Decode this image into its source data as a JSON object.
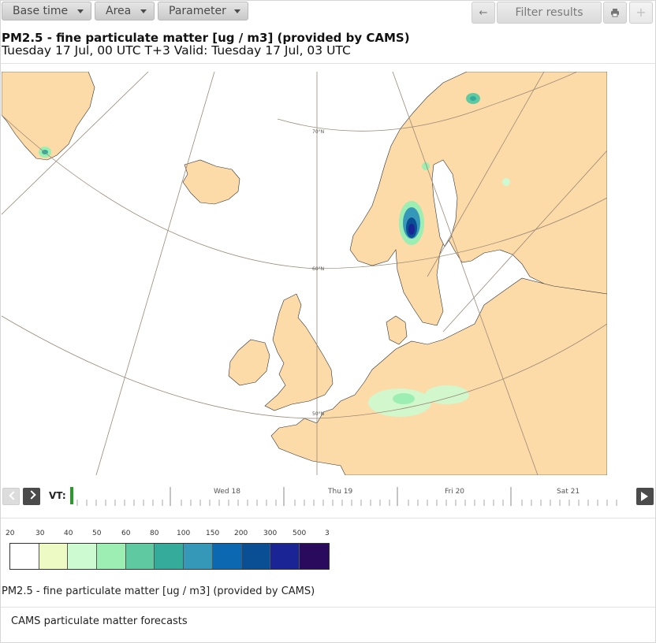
{
  "toolbar": {
    "base_time": "Base time",
    "area": "Area",
    "parameter": "Parameter",
    "filter_results": "Filter results"
  },
  "title": {
    "line1": "PM2.5 - fine particulate matter [ug / m3] (provided by CAMS)",
    "line2": "Tuesday 17 Jul, 00 UTC T+3 Valid: Tuesday 17 Jul, 03 UTC"
  },
  "map": {
    "lat_labels": [
      "70°N",
      "60°N",
      "50°N"
    ],
    "colors": {
      "land": "#fcdba8",
      "sea": "#ffffff",
      "border": "#222222",
      "graticule": "#9a8a78"
    }
  },
  "timeline": {
    "vt_label": "VT:",
    "days": [
      "Wed 18",
      "Thu 19",
      "Fri 20",
      "Sat 21"
    ],
    "current_marker_color": "#2a9a2a"
  },
  "legend": {
    "labels": [
      "20",
      "30",
      "40",
      "50",
      "60",
      "80",
      "100",
      "150",
      "200",
      "300",
      "500",
      "3"
    ],
    "colors": [
      "#ffffff",
      "#eefac4",
      "#cdfad0",
      "#9ceeb2",
      "#5fcaa2",
      "#35ab9c",
      "#3598b8",
      "#0c68b0",
      "#0a4f94",
      "#1a2494",
      "#2a0a5c"
    ],
    "caption": "PM2.5 - fine particulate matter [ug / m3] (provided by CAMS)"
  },
  "footer": {
    "text": "CAMS particulate matter forecasts"
  }
}
